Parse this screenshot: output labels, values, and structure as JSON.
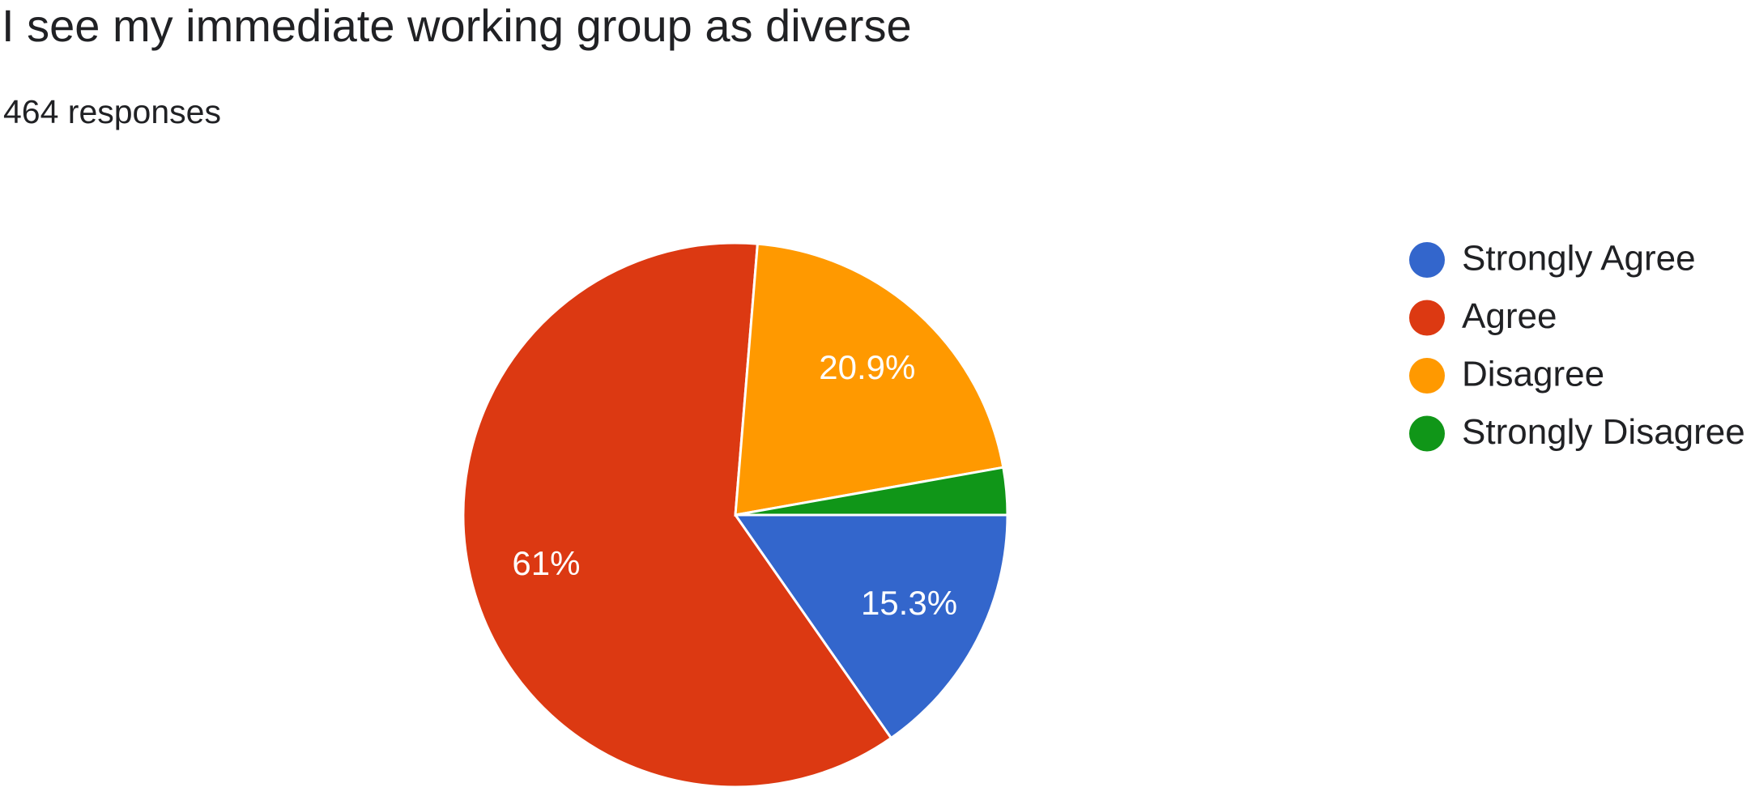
{
  "chart_data": {
    "type": "pie",
    "title": "I see my immediate working group as diverse",
    "subtitle": "464 responses",
    "categories": [
      "Strongly Agree",
      "Agree",
      "Disagree",
      "Strongly Disagree"
    ],
    "values": [
      15.3,
      61,
      20.9,
      2.8
    ],
    "value_labels": [
      "15.3%",
      "61%",
      "20.9%",
      null
    ],
    "colors": [
      "#3366cc",
      "#dc3912",
      "#ff9900",
      "#109618"
    ],
    "legend": "right"
  }
}
